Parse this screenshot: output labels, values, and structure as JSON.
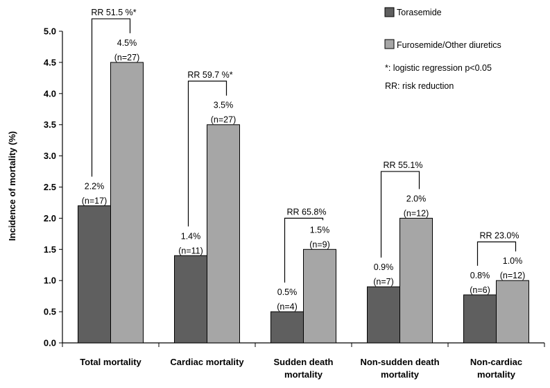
{
  "chart_data": {
    "type": "bar",
    "title": "",
    "xlabel": "",
    "ylabel": "Incidence of  mortality  (%)",
    "ylim": [
      0,
      5
    ],
    "ytick_step": 0.5,
    "grid": false,
    "legend_position": "top-right",
    "categories": [
      [
        "Total mortality"
      ],
      [
        "Cardiac mortality"
      ],
      [
        "Sudden death",
        "mortality"
      ],
      [
        "Non-sudden death",
        "mortality"
      ],
      [
        "Non-cardiac",
        "mortality"
      ]
    ],
    "series": [
      {
        "name": "Torasemide",
        "color": "#5f5f5f",
        "values": [
          2.2,
          1.4,
          0.5,
          0.9,
          0.77
        ],
        "pct_labels": [
          "2.2%",
          "1.4%",
          "0.5%",
          "0.9%",
          "0.8%"
        ],
        "n_labels": [
          "(n=17)",
          "(n=11)",
          "(n=4)",
          "(n=7)",
          "(n=6)"
        ]
      },
      {
        "name": "Furosemide/Other diuretics",
        "color": "#a6a6a6",
        "values": [
          4.5,
          3.5,
          1.5,
          2.0,
          1.0
        ],
        "pct_labels": [
          "4.5%",
          "3.5%",
          "1.5%",
          "2.0%",
          "1.0%"
        ],
        "n_labels": [
          "(n=27)",
          "(n=27)",
          "(n=9)",
          "(n=12)",
          "(n=12)"
        ]
      }
    ],
    "annotations": [
      {
        "category": 0,
        "text": "RR 51.5 %*",
        "bracket_top": 5.2
      },
      {
        "category": 1,
        "text": "RR 59.7 %*",
        "bracket_top": 4.2
      },
      {
        "category": 2,
        "text": "RR 65.8%",
        "bracket_top": 2.0
      },
      {
        "category": 3,
        "text": "RR 55.1%",
        "bracket_top": 2.75
      },
      {
        "category": 4,
        "text": "RR 23.0%",
        "bracket_top": 1.62
      }
    ],
    "notes": [
      "*: logistic regression p<0.05",
      "RR: risk reduction"
    ]
  }
}
